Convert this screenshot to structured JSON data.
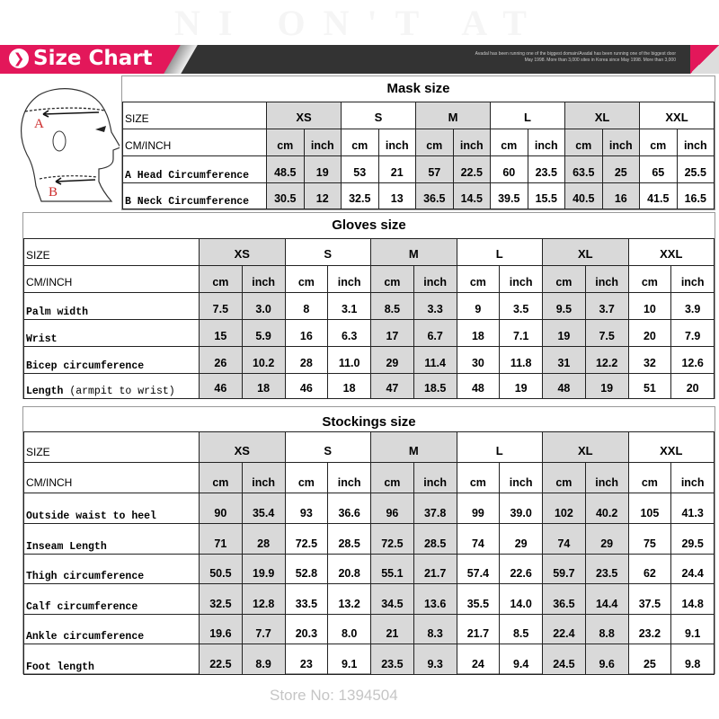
{
  "header": {
    "title": "Size Chart",
    "blurb_line1": "Avadal has been running one of the biggest domain/Avadal has been running one of the biggest door",
    "blurb_line2": "May 1998. More than 3,000 sites in Korea since May 1998. More than 3,000",
    "brand_color": "#e3175a"
  },
  "head_diagram": {
    "label_a": "A",
    "label_b": "B",
    "label_color": "#cc2a2a"
  },
  "watermark": {
    "store": "Store No: 1394504",
    "brand": "NI ON'T AT"
  },
  "sizes": [
    "XS",
    "S",
    "M",
    "L",
    "XL",
    "XXL"
  ],
  "size_label": "SIZE",
  "unit_label": "CM/INCH",
  "units": [
    "cm",
    "inch"
  ],
  "shaded_color": "#d9d9d9",
  "tables": [
    {
      "title": "Mask size",
      "rows": [
        {
          "label": "A Head Circumference",
          "values": [
            "48.5",
            "19",
            "53",
            "21",
            "57",
            "22.5",
            "60",
            "23.5",
            "63.5",
            "25",
            "65",
            "25.5"
          ]
        },
        {
          "label": "B Neck Circumference",
          "values": [
            "30.5",
            "12",
            "32.5",
            "13",
            "36.5",
            "14.5",
            "39.5",
            "15.5",
            "40.5",
            "16",
            "41.5",
            "16.5"
          ]
        }
      ]
    },
    {
      "title": "Gloves size",
      "rows": [
        {
          "label": "Palm width",
          "values": [
            "7.5",
            "3.0",
            "8",
            "3.1",
            "8.5",
            "3.3",
            "9",
            "3.5",
            "9.5",
            "3.7",
            "10",
            "3.9"
          ]
        },
        {
          "label": "Wrist",
          "values": [
            "15",
            "5.9",
            "16",
            "6.3",
            "17",
            "6.7",
            "18",
            "7.1",
            "19",
            "7.5",
            "20",
            "7.9"
          ]
        },
        {
          "label": "Bicep circumference",
          "values": [
            "26",
            "10.2",
            "28",
            "11.0",
            "29",
            "11.4",
            "30",
            "11.8",
            "31",
            "12.2",
            "32",
            "12.6"
          ]
        },
        {
          "label": "Length",
          "note": " (armpit to wrist)",
          "values": [
            "46",
            "18",
            "46",
            "18",
            "47",
            "18.5",
            "48",
            "19",
            "48",
            "19",
            "51",
            "20"
          ]
        }
      ]
    },
    {
      "title": "Stockings size",
      "rows": [
        {
          "label": "Outside waist to heel",
          "values": [
            "90",
            "35.4",
            "93",
            "36.6",
            "96",
            "37.8",
            "99",
            "39.0",
            "102",
            "40.2",
            "105",
            "41.3"
          ]
        },
        {
          "label": "Inseam Length",
          "values": [
            "71",
            "28",
            "72.5",
            "28.5",
            "72.5",
            "28.5",
            "74",
            "29",
            "74",
            "29",
            "75",
            "29.5"
          ]
        },
        {
          "label": "Thigh circumference",
          "values": [
            "50.5",
            "19.9",
            "52.8",
            "20.8",
            "55.1",
            "21.7",
            "57.4",
            "22.6",
            "59.7",
            "23.5",
            "62",
            "24.4"
          ]
        },
        {
          "label": "Calf circumference",
          "values": [
            "32.5",
            "12.8",
            "33.5",
            "13.2",
            "34.5",
            "13.6",
            "35.5",
            "14.0",
            "36.5",
            "14.4",
            "37.5",
            "14.8"
          ]
        },
        {
          "label": "Ankle circumference",
          "values": [
            "19.6",
            "7.7",
            "20.3",
            "8.0",
            "21",
            "8.3",
            "21.7",
            "8.5",
            "22.4",
            "8.8",
            "23.2",
            "9.1"
          ]
        },
        {
          "label": "Foot length",
          "values": [
            "22.5",
            "8.9",
            "23",
            "9.1",
            "23.5",
            "9.3",
            "24",
            "9.4",
            "24.5",
            "9.6",
            "25",
            "9.8"
          ]
        }
      ]
    }
  ]
}
